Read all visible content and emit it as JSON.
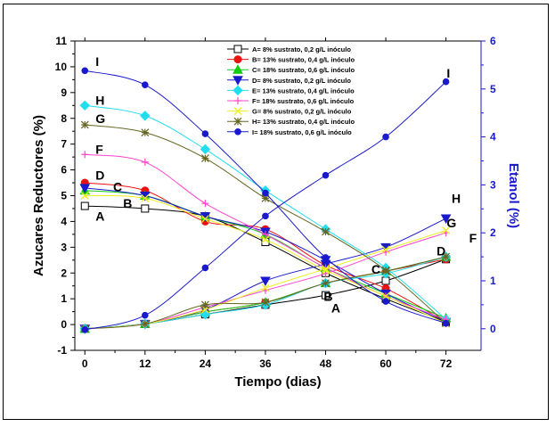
{
  "chart_data": {
    "type": "line",
    "title": "",
    "xlabel": "Tiempo (dias)",
    "ylabel_left": "Azucares Reductores (%)",
    "ylabel_right": "Etanol (%)",
    "x_ticks": [
      0,
      12,
      24,
      36,
      48,
      60,
      72
    ],
    "y_left_ticks": [
      -1,
      0,
      1,
      2,
      3,
      4,
      5,
      6,
      7,
      8,
      9,
      10,
      11
    ],
    "y_right_ticks": [
      0,
      1,
      2,
      3,
      4,
      5,
      6
    ],
    "xlim": [
      -2,
      79
    ],
    "ylim_left": [
      -1,
      11
    ],
    "ylim_right": [
      -0.45,
      6
    ],
    "axis_colors": {
      "left": "#000000",
      "right": "#1a1acc"
    },
    "legend_position": "top-center",
    "series": [
      {
        "key": "A",
        "name": "A= 8% sustrato, 0,2 g/L inóculo",
        "color": "#000000",
        "marker": "open-square",
        "sugar": [
          4.6,
          4.5,
          4.2,
          3.2,
          2.0,
          1.0,
          0.1
        ],
        "ethanol": [
          0.0,
          0.1,
          0.3,
          0.5,
          0.7,
          1.0,
          1.45
        ]
      },
      {
        "key": "B",
        "name": "B= 13% sustrato, 0,4 g/L inóculo",
        "color": "#ee1111",
        "marker": "circle",
        "sugar": [
          5.5,
          5.2,
          4.0,
          3.7,
          2.3,
          1.4,
          0.1
        ],
        "ethanol": [
          0.0,
          0.1,
          0.35,
          0.55,
          0.95,
          1.2,
          1.45
        ]
      },
      {
        "key": "C",
        "name": "C= 18% sustrato, 0,6 g/L inóculo",
        "color": "#11cc11",
        "marker": "triangle-up",
        "sugar": [
          5.2,
          5.0,
          4.2,
          3.5,
          2.2,
          1.2,
          0.25
        ],
        "ethanol": [
          0.0,
          0.1,
          0.35,
          0.55,
          0.95,
          1.2,
          1.5
        ]
      },
      {
        "key": "D",
        "name": "D= 8% sustrato, 0,2 g/L inóculo",
        "color": "#1a1acc",
        "marker": "triangle-down",
        "sugar": [
          5.3,
          5.0,
          4.2,
          3.6,
          2.5,
          1.2,
          0.1
        ],
        "ethanol": [
          0.0,
          0.1,
          0.4,
          1.0,
          1.35,
          1.7,
          2.3
        ]
      },
      {
        "key": "E",
        "name": "E= 13% sustrato, 0,4 g/L inóculo",
        "color": "#22ddee",
        "marker": "diamond",
        "sugar": [
          8.5,
          8.1,
          6.8,
          5.2,
          3.7,
          2.2,
          0.2
        ],
        "ethanol": [
          0.0,
          0.1,
          0.3,
          0.5,
          0.95,
          1.15,
          1.5
        ]
      },
      {
        "key": "F",
        "name": "F= 18% sustrato, 0,6 g/L inóculo",
        "color": "#ff44cc",
        "marker": "plus",
        "sugar": [
          6.6,
          6.3,
          4.7,
          3.5,
          2.2,
          1.1,
          0.2
        ],
        "ethanol": [
          0.0,
          0.1,
          0.45,
          0.8,
          1.15,
          1.6,
          2.0
        ]
      },
      {
        "key": "G",
        "name": "G= 8% sustrato, 0,2 g/L inóculo",
        "color": "#eeee22",
        "marker": "x",
        "sugar": [
          5.0,
          4.9,
          4.1,
          3.3,
          2.1,
          1.1,
          0.05
        ],
        "ethanol": [
          0.0,
          0.1,
          0.4,
          0.85,
          1.25,
          1.65,
          2.05
        ]
      },
      {
        "key": "H",
        "name": "H= 13% sustrato, 0,4 g/L inóculo",
        "color": "#666622",
        "marker": "star",
        "sugar": [
          7.75,
          7.45,
          6.45,
          4.9,
          3.6,
          2.1,
          0.05
        ],
        "ethanol": [
          0.0,
          0.1,
          0.5,
          0.55,
          0.95,
          1.2,
          1.5
        ]
      },
      {
        "key": "I",
        "name": "I= 18% sustrato, 0,6 g/L inóculo",
        "color": "#1a1acc",
        "marker": "filled-circle",
        "sugar": [
          9.85,
          9.3,
          7.4,
          5.1,
          2.6,
          0.9,
          0.05
        ],
        "ethanol": [
          -0.02,
          0.28,
          1.27,
          2.35,
          3.2,
          4.0,
          5.15
        ]
      }
    ],
    "annotations": [
      {
        "text": "I",
        "x": 0,
        "y": 10.2
      },
      {
        "text": "H",
        "x": 0,
        "y": 8.7
      },
      {
        "text": "G",
        "x": 0,
        "y": 8.0
      },
      {
        "text": "F",
        "x": 0,
        "y": 6.8
      },
      {
        "text": "D",
        "x": 0,
        "y": 5.8
      },
      {
        "text": "C",
        "x": 3.5,
        "y": 5.35
      },
      {
        "text": "B",
        "x": 5.5,
        "y": 4.7
      },
      {
        "text": "A",
        "x": 0,
        "y": 4.2
      },
      {
        "text": "I",
        "x": 70,
        "y": 9.75
      },
      {
        "text": "H",
        "x": 71,
        "y": 4.9
      },
      {
        "text": "G",
        "x": 70,
        "y": 3.95
      },
      {
        "text": "D",
        "x": 68,
        "y": 2.85
      },
      {
        "text": "F",
        "x": 74.5,
        "y": 3.35
      },
      {
        "text": "C",
        "x": 55,
        "y": 2.15
      },
      {
        "text": "B",
        "x": 45.5,
        "y": 1.1
      },
      {
        "text": "A",
        "x": 47,
        "y": 0.65
      }
    ]
  }
}
